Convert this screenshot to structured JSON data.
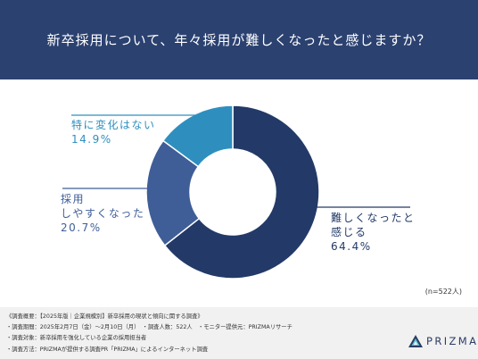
{
  "header": {
    "title": "新卒採用について、年々採用が難しくなったと感じますか？"
  },
  "chart_data": {
    "type": "pie",
    "variant": "donut",
    "title": "新卒採用について、年々採用が難しくなったと感じますか？",
    "slices": [
      {
        "label_lines": [
          "難しくなったと",
          "感じる"
        ],
        "value": 64.4,
        "value_label": "64.4%",
        "color": "#233a68"
      },
      {
        "label_lines": [
          "採用",
          "しやすくなった"
        ],
        "value": 20.7,
        "value_label": "20.7%",
        "color": "#3f5e98"
      },
      {
        "label_lines": [
          "特に変化はない"
        ],
        "value": 14.9,
        "value_label": "14.9%",
        "color": "#2e8fbf"
      }
    ],
    "sample_size": "(n=522人)"
  },
  "notes": [
    "《調査概要：【2025年版｜企業規模別】新卒採用の現状と傾向に関する調査》",
    "・調査期間：2025年2月7日（金）～2月10日（月）　・調査人数：522人　・モニター提供元：PRIZMAリサーチ",
    "・調査対象：新卒採用を強化している企業の採用担当者",
    "・調査方法：PRIZMAが提供する調査PR「PRIZMA」によるインターネット調査"
  ],
  "logo": {
    "text": "PRIZMA",
    "icon": "prizma-triangle-icon",
    "color": "#2b3c64"
  }
}
